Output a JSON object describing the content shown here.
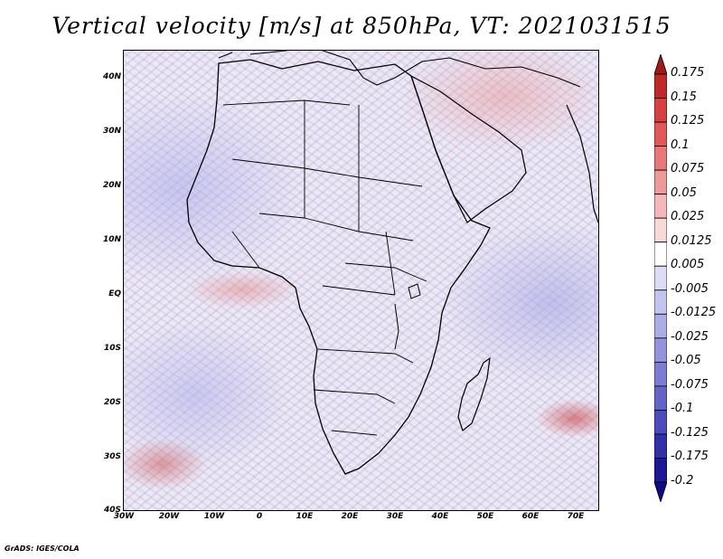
{
  "title": "Vertical velocity [m/s] at 850hPa, VT: 2021031515",
  "footer": "GrADS: IGES/COLA",
  "map": {
    "lat_labels": [
      "40N",
      "30N",
      "20N",
      "10N",
      "EQ",
      "10S",
      "20S",
      "30S",
      "40S"
    ],
    "lon_labels": [
      "30W",
      "20W",
      "10W",
      "0",
      "10E",
      "20E",
      "30E",
      "40E",
      "50E",
      "60E",
      "70E"
    ]
  },
  "colorbar": {
    "labels": [
      "0.175",
      "0.15",
      "0.125",
      "0.1",
      "0.075",
      "0.05",
      "0.025",
      "0.0125",
      "0.005",
      "-0.005",
      "-0.0125",
      "-0.025",
      "-0.05",
      "-0.075",
      "-0.1",
      "-0.125",
      "-0.175",
      "-0.2"
    ],
    "colors": [
      "#a01818",
      "#c02828",
      "#d64040",
      "#e25858",
      "#e87878",
      "#ee9898",
      "#f4b8b8",
      "#f9d8d8",
      "#ffffff",
      "#dcdcf6",
      "#c4c4ef",
      "#acace6",
      "#9494dc",
      "#7c7cd2",
      "#6464c6",
      "#4c4cba",
      "#3030a8",
      "#1a1a96",
      "#0c0c82"
    ]
  }
}
